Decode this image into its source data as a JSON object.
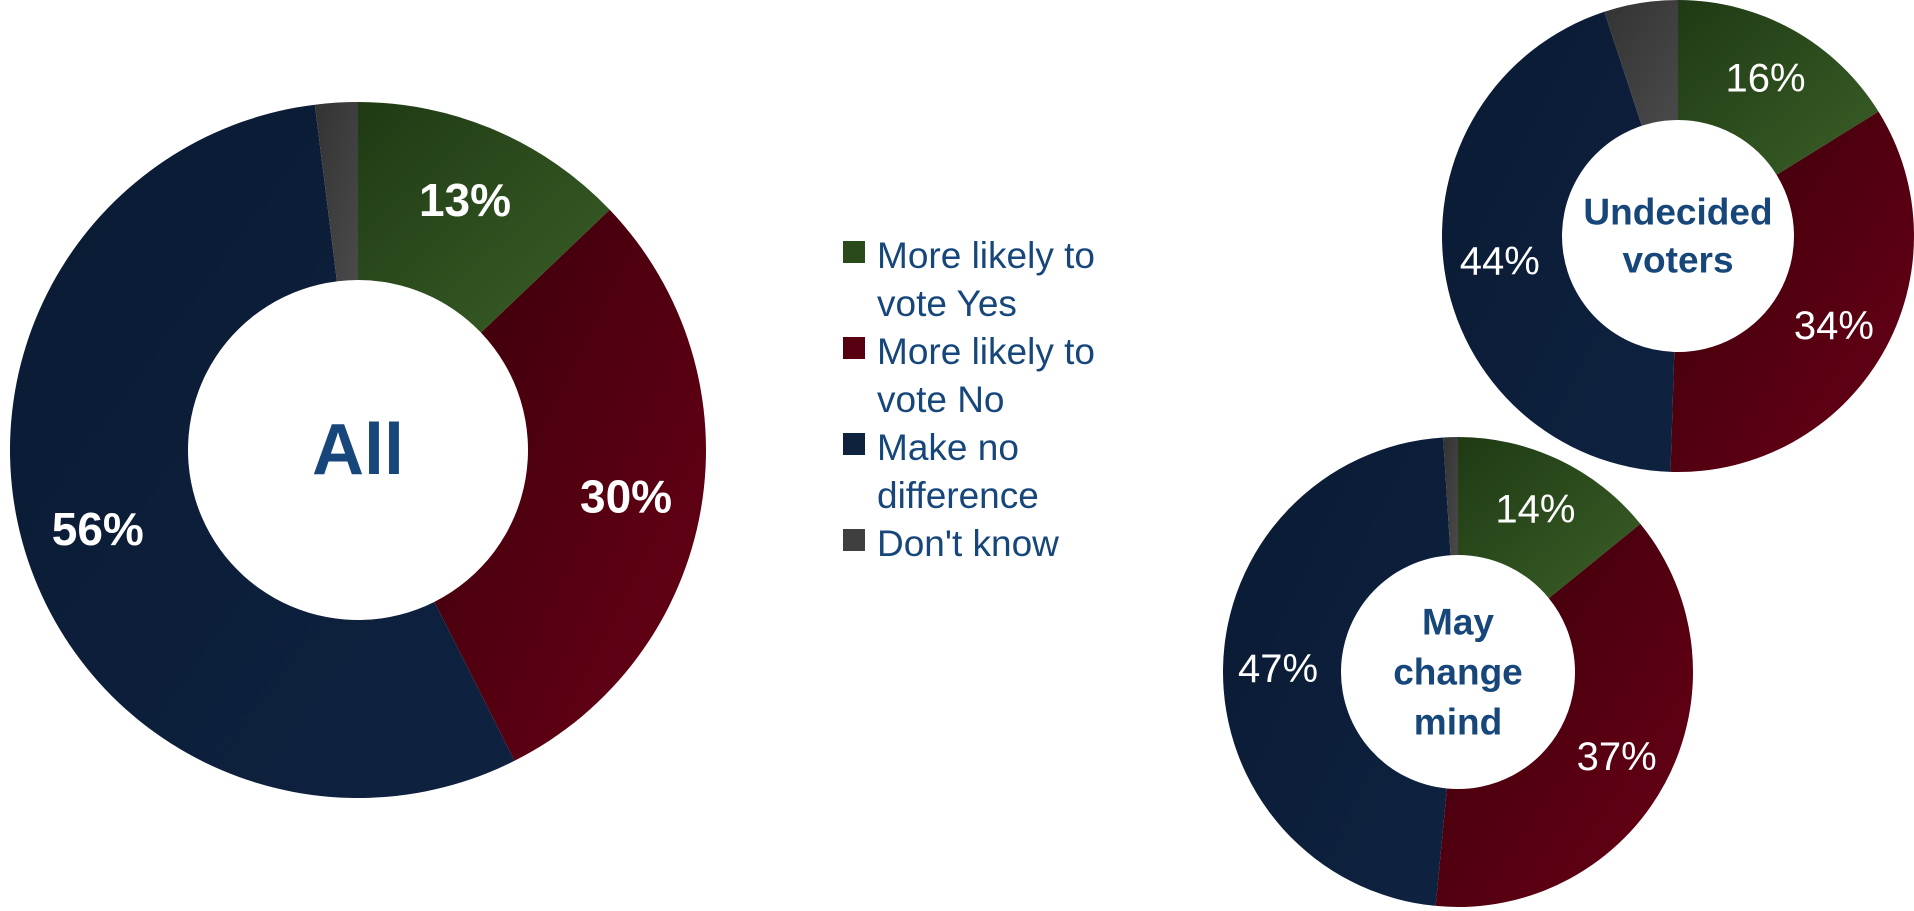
{
  "colors": {
    "yes": "#2b4a1c",
    "no": "#570012",
    "no_difference": "#0e213d",
    "dont_know": "#3f3f3f",
    "center_label": "#17477a",
    "legend_text": "#17477a"
  },
  "legend": [
    {
      "label": "More likely to vote Yes",
      "color": "#2b4a1c"
    },
    {
      "label": "More likely to vote No",
      "color": "#570012"
    },
    {
      "label": "Make no difference",
      "color": "#0e213d"
    },
    {
      "label": "Don't know",
      "color": "#3f3f3f"
    }
  ],
  "chart_data": [
    {
      "type": "pie",
      "title": "All",
      "categories": [
        "More likely to vote Yes",
        "More likely to vote No",
        "Make no difference",
        "Don't know"
      ],
      "values": [
        13,
        30,
        56,
        2
      ],
      "labels": [
        "13%",
        "30%",
        "56%",
        ""
      ]
    },
    {
      "type": "pie",
      "title": "Undecided voters",
      "categories": [
        "More likely to vote Yes",
        "More likely to vote No",
        "Make no difference",
        "Don't know"
      ],
      "values": [
        16,
        34,
        44,
        5
      ],
      "labels": [
        "16%",
        "34%",
        "44%",
        ""
      ]
    },
    {
      "type": "pie",
      "title": "May change mind",
      "categories": [
        "More likely to vote Yes",
        "More likely to vote No",
        "Make no difference",
        "Don't know"
      ],
      "values": [
        14,
        37,
        47,
        1
      ],
      "labels": [
        "14%",
        "37%",
        "47%",
        ""
      ]
    }
  ]
}
